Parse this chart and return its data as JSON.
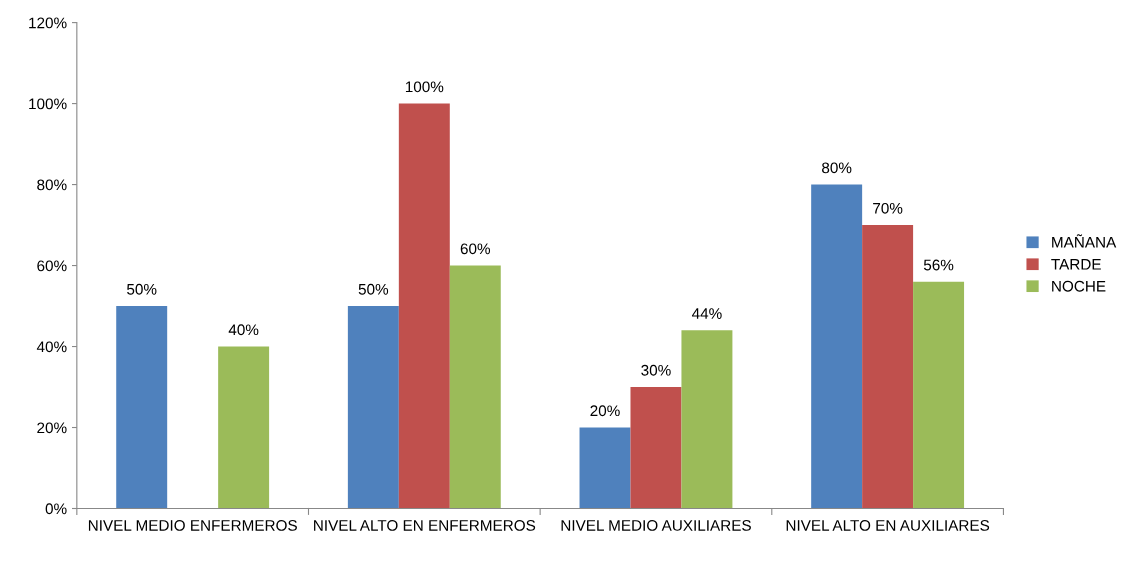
{
  "chart_data": {
    "type": "bar",
    "categories": [
      "NIVEL MEDIO ENFERMEROS",
      "NIVEL ALTO EN ENFERMEROS",
      "NIVEL MEDIO AUXILIARES",
      "NIVEL ALTO EN AUXILIARES"
    ],
    "series": [
      {
        "name": "MAÑANA",
        "color": "#4f81bd",
        "values": [
          50,
          50,
          20,
          80
        ],
        "value_labels": [
          "50%",
          "50%",
          "20%",
          "80%"
        ]
      },
      {
        "name": "TARDE",
        "color": "#c0504d",
        "values": [
          null,
          100,
          30,
          70
        ],
        "value_labels": [
          null,
          "100%",
          "30%",
          "70%"
        ]
      },
      {
        "name": "NOCHE",
        "color": "#9bbb59",
        "values": [
          40,
          60,
          44,
          56
        ],
        "value_labels": [
          "40%",
          "60%",
          "44%",
          "56%"
        ]
      }
    ],
    "ylim": [
      0,
      120
    ],
    "yticks": [
      {
        "value": 0,
        "label": "0%"
      },
      {
        "value": 20,
        "label": "20%"
      },
      {
        "value": 40,
        "label": "40%"
      },
      {
        "value": 60,
        "label": "60%"
      },
      {
        "value": 80,
        "label": "80%"
      },
      {
        "value": 100,
        "label": "100%"
      },
      {
        "value": 120,
        "label": "120%"
      }
    ],
    "grid": false,
    "legend": "right"
  }
}
